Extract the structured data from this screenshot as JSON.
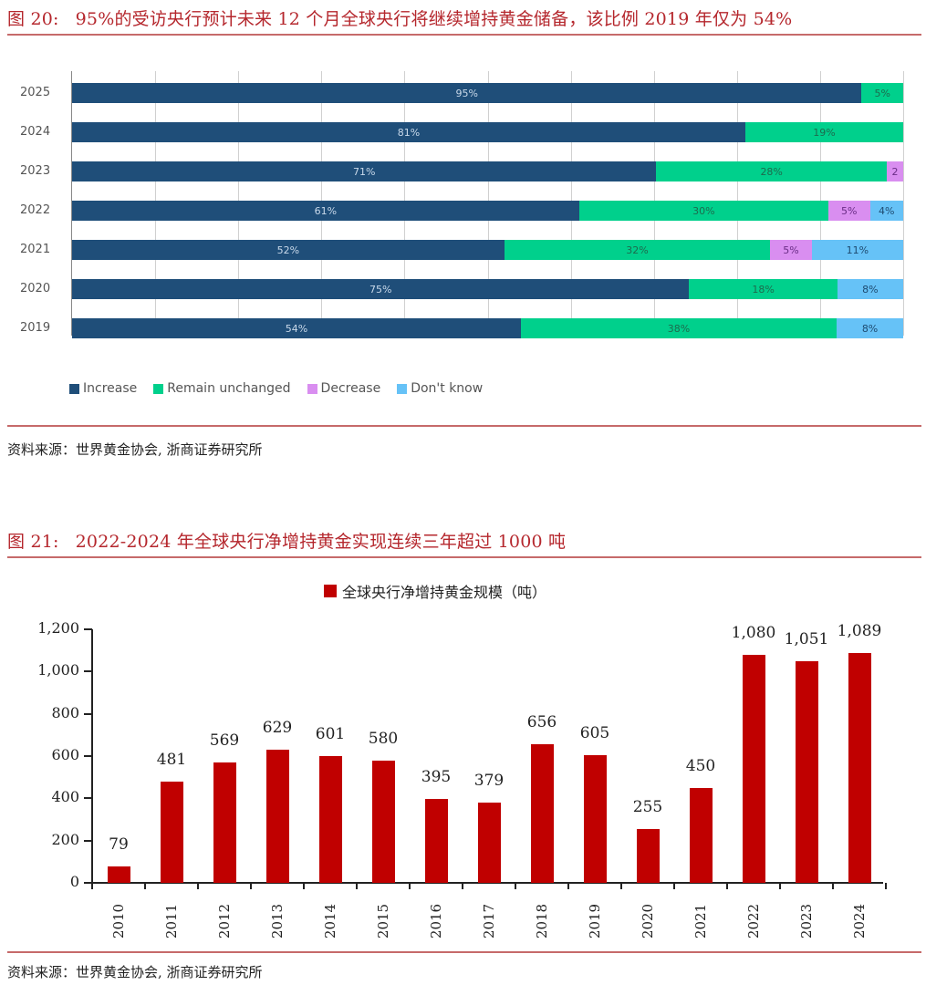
{
  "figure20": {
    "number": "图 20:",
    "title": "95%的受访央行预计未来 12 个月全球央行将继续增持黄金储备，该比例 2019 年仅为 54%",
    "source": "资料来源：世界黄金协会, 浙商证券研究所"
  },
  "figure21": {
    "number": "图 21:",
    "title": "2022-2024 年全球央行净增持黄金实现连续三年超过 1000 吨",
    "source": "资料来源：世界黄金协会, 浙商证券研究所"
  },
  "chart_data": [
    {
      "type": "bar",
      "orientation": "horizontal",
      "stacked": true,
      "title": "95%的受访央行预计未来 12 个月全球央行将继续增持黄金储备，该比例 2019 年仅为 54%",
      "categories": [
        "2025",
        "2024",
        "2023",
        "2022",
        "2021",
        "2020",
        "2019"
      ],
      "series": [
        {
          "name": "Increase",
          "color": "#1f4e79",
          "label_color": "#c9d9ea",
          "values": [
            95,
            81,
            71,
            61,
            52,
            75,
            54
          ],
          "labels": [
            "95%",
            "81%",
            "71%",
            "61%",
            "52%",
            "75%",
            "54%"
          ]
        },
        {
          "name": "Remain unchanged",
          "color": "#00d08c",
          "label_color": "#1d6b4e",
          "values": [
            5,
            19,
            28,
            30,
            32,
            18,
            38
          ],
          "labels": [
            "5%",
            "19%",
            "28%",
            "30%",
            "32%",
            "18%",
            "38%"
          ]
        },
        {
          "name": "Decrease",
          "color": "#d98ef0",
          "label_color": "#6a2d86",
          "values": [
            0,
            0,
            2,
            5,
            5,
            0,
            0
          ],
          "labels": [
            "",
            "",
            "2",
            "5%",
            "5%",
            "",
            ""
          ]
        },
        {
          "name": "Don't know",
          "color": "#66c2f7",
          "label_color": "#1e4a70",
          "values": [
            0,
            0,
            0,
            4,
            11,
            8,
            8
          ],
          "labels": [
            "",
            "",
            "",
            "4%",
            "11%",
            "8%",
            "8%"
          ]
        }
      ],
      "xlim": [
        0,
        100
      ],
      "grid": true,
      "legend_position": "bottom-left",
      "xlabel": "",
      "ylabel": ""
    },
    {
      "type": "bar",
      "title": "2022-2024 年全球央行净增持黄金实现连续三年超过 1000 吨",
      "legend": [
        "全球央行净增持黄金规模（吨）"
      ],
      "legend_position": "top-center",
      "categories": [
        "2010",
        "2011",
        "2012",
        "2013",
        "2014",
        "2015",
        "2016",
        "2017",
        "2018",
        "2019",
        "2020",
        "2021",
        "2022",
        "2023",
        "2024"
      ],
      "series": [
        {
          "name": "全球央行净增持黄金规模（吨）",
          "color": "#c00000",
          "values": [
            79,
            481,
            569,
            629,
            601,
            580,
            395,
            379,
            656,
            605,
            255,
            450,
            1080,
            1051,
            1089
          ],
          "labels": [
            "79",
            "481",
            "569",
            "629",
            "601",
            "580",
            "395",
            "379",
            "656",
            "605",
            "255",
            "450",
            "1,080",
            "1,051",
            "1,089"
          ]
        }
      ],
      "yticks": [
        "0",
        "200",
        "400",
        "600",
        "800",
        "1,000",
        "1,200"
      ],
      "ylim": [
        0,
        1200
      ],
      "grid": false,
      "xlabel": "",
      "ylabel": ""
    }
  ]
}
